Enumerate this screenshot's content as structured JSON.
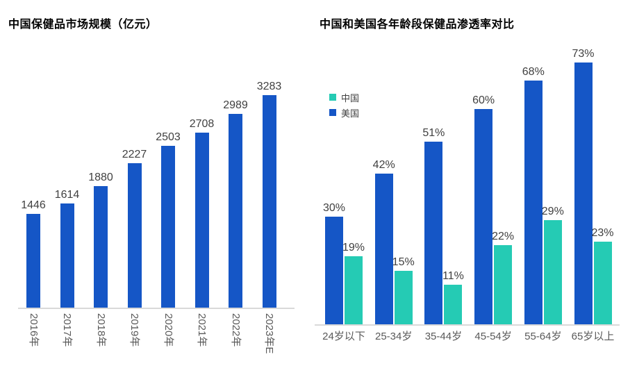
{
  "page": {
    "background": "#ffffff"
  },
  "colors": {
    "us_blue": "#1556C6",
    "china_teal": "#25CBB4",
    "axis_line": "#D9D9D9",
    "tick_text": "#595959",
    "value_text": "#404040",
    "title_text": "#000000"
  },
  "chart_data": [
    {
      "type": "bar",
      "title": "中国保健品市场规模（亿元）",
      "categories": [
        "2016年",
        "2017年",
        "2018年",
        "2019年",
        "2020年",
        "2021年",
        "2022年",
        "2023年E"
      ],
      "values": [
        1446,
        1614,
        1880,
        2227,
        2503,
        2708,
        2989,
        3283
      ],
      "labels": [
        "1446",
        "1614",
        "1880",
        "2227",
        "2503",
        "2708",
        "2989",
        "3283"
      ],
      "xlabel": "",
      "ylabel": "",
      "ylim": [
        0,
        3283
      ],
      "grid": false,
      "legend": "none",
      "data_labels": "above-bars",
      "tick_label_rotation": 90,
      "bar_color_key": "us_blue"
    },
    {
      "type": "bar",
      "title": "中国和美国各年龄段保健品渗透率对比",
      "categories": [
        "24岁以下",
        "25-34岁",
        "35-44岁",
        "45-54岁",
        "55-64岁",
        "65岁以上"
      ],
      "series": [
        {
          "name": "中国",
          "color_key": "china_teal",
          "values": [
            19,
            15,
            11,
            22,
            29,
            23
          ],
          "labels": [
            "19%",
            "15%",
            "11%",
            "22%",
            "29%",
            "23%"
          ]
        },
        {
          "name": "美国",
          "color_key": "us_blue",
          "values": [
            30,
            42,
            51,
            60,
            68,
            73
          ],
          "labels": [
            "30%",
            "42%",
            "51%",
            "60%",
            "68%",
            "73%"
          ]
        }
      ],
      "bar_order_in_group": [
        "美国",
        "中国"
      ],
      "xlabel": "",
      "ylabel": "",
      "ylim": [
        0,
        80
      ],
      "grid": false,
      "legend_position": "upper-left",
      "data_labels": "above-bars"
    }
  ]
}
